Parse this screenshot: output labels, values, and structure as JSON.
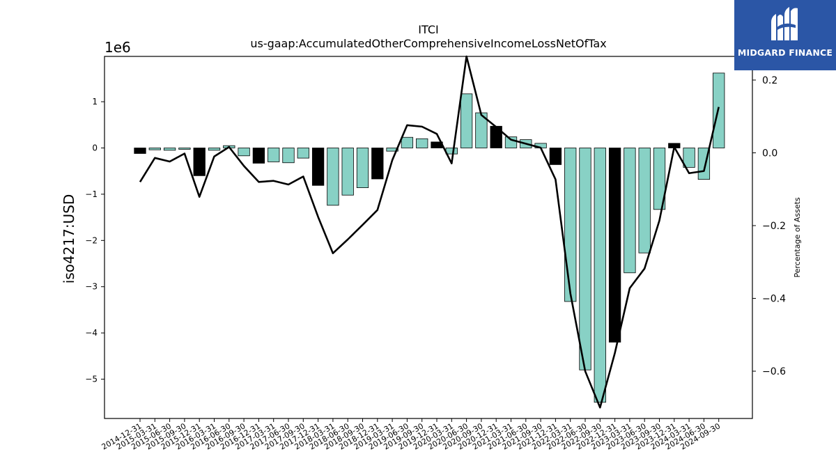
{
  "chart_data": {
    "type": "bar",
    "title": "ITCI",
    "subtitle": "us-gaap:AccumulatedOtherComprehensiveIncomeLossNetOfTax",
    "ylabel": "iso4217:USD",
    "y2label": "Percentage of Assets",
    "y_offset_label": "1e6",
    "ylim": [
      -5.85,
      1.98
    ],
    "y2lim": [
      -0.73,
      0.265
    ],
    "yticks": [
      1,
      0,
      -1,
      -2,
      -3,
      -4,
      -5
    ],
    "ytick_labels": [
      "1",
      "0",
      "−1",
      "−2",
      "−3",
      "−4",
      "−5"
    ],
    "y2ticks": [
      0.2,
      0.0,
      -0.2,
      -0.4,
      -0.6
    ],
    "y2tick_labels": [
      "0.2",
      "0.0",
      "−0.2",
      "−0.4",
      "−0.6"
    ],
    "categories": [
      "2014-12-31",
      "2015-03-31",
      "2015-06-30",
      "2015-09-30",
      "2015-12-31",
      "2016-03-31",
      "2016-06-30",
      "2016-09-30",
      "2016-12-31",
      "2017-03-31",
      "2017-06-30",
      "2017-09-30",
      "2017-12-31",
      "2018-03-31",
      "2018-06-30",
      "2018-09-30",
      "2018-12-31",
      "2019-03-31",
      "2019-06-30",
      "2019-09-30",
      "2019-12-31",
      "2020-03-31",
      "2020-06-30",
      "2020-09-30",
      "2020-12-31",
      "2021-03-31",
      "2021-06-30",
      "2021-09-30",
      "2021-12-31",
      "2022-03-31",
      "2022-06-30",
      "2022-09-30",
      "2022-12-31",
      "2023-03-31",
      "2023-06-30",
      "2023-09-30",
      "2023-12-31",
      "2024-03-31",
      "2024-06-30",
      "2024-09-30"
    ],
    "series": [
      {
        "type": "bar",
        "values": [
          -0.12,
          -0.04,
          -0.05,
          -0.03,
          -0.6,
          -0.05,
          0.05,
          -0.17,
          -0.33,
          -0.3,
          -0.32,
          -0.22,
          -0.81,
          -1.24,
          -1.02,
          -0.86,
          -0.67,
          -0.07,
          0.23,
          0.2,
          0.13,
          -0.13,
          1.17,
          0.76,
          0.47,
          0.24,
          0.18,
          0.1,
          -0.36,
          -3.32,
          -4.8,
          -5.5,
          -4.2,
          -2.7,
          -2.27,
          -1.33,
          0.1,
          -0.42,
          -0.68,
          1.62
        ],
        "year_end_flags": [
          true,
          false,
          false,
          false,
          true,
          false,
          false,
          false,
          true,
          false,
          false,
          false,
          true,
          false,
          false,
          false,
          true,
          false,
          false,
          false,
          true,
          false,
          false,
          false,
          true,
          false,
          false,
          false,
          true,
          false,
          false,
          false,
          true,
          false,
          false,
          false,
          true,
          false,
          false,
          false
        ],
        "colors": {
          "default": "#88d1c5",
          "year_end": "#000000",
          "edge": "#000000"
        }
      },
      {
        "type": "line",
        "axis": "right",
        "values": [
          -0.08,
          -0.014,
          -0.024,
          -0.002,
          -0.121,
          -0.01,
          0.016,
          -0.036,
          -0.08,
          -0.077,
          -0.087,
          -0.065,
          -0.176,
          -0.276,
          -0.238,
          -0.198,
          -0.157,
          -0.02,
          0.076,
          0.072,
          0.052,
          -0.029,
          0.265,
          0.104,
          0.071,
          0.036,
          0.025,
          0.014,
          -0.073,
          -0.386,
          -0.6,
          -0.7,
          -0.55,
          -0.372,
          -0.318,
          -0.186,
          0.016,
          -0.056,
          -0.05,
          0.126
        ],
        "color": "#000000"
      }
    ],
    "grid": false,
    "legend": "none"
  },
  "logo": {
    "name": "MIDGARD FINANCE",
    "background": "#2b56a6"
  }
}
